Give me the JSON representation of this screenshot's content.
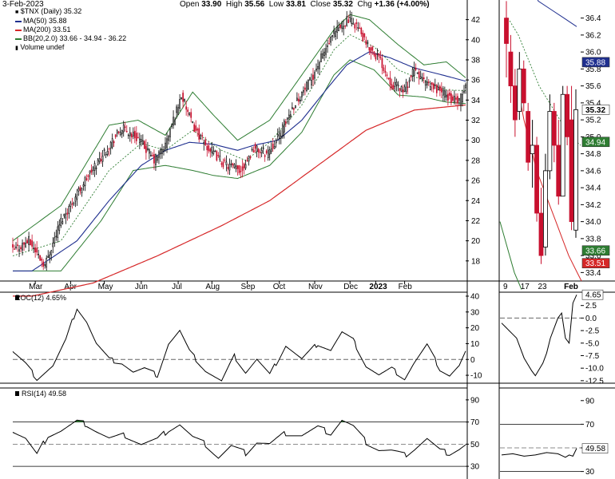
{
  "header": {
    "date": "3-Feb-2023",
    "open_label": "Open",
    "open": "33.90",
    "high_label": "High",
    "high": "35.56",
    "low_label": "Low",
    "low": "33.81",
    "close_label": "Close",
    "close": "35.32",
    "chg_label": "Chg",
    "chg": "+1.36 (+4.00%)"
  },
  "legend": {
    "ticker": "$TNX (Daily) 35.32",
    "ma50": "MA(50) 35.88",
    "ma200": "MA(200) 33.51",
    "bb": "BB(20,2.0) 33.66 - 34.94 - 36.22",
    "volume": "Volume undef"
  },
  "colors": {
    "up": "#000000",
    "down": "#c8102e",
    "ma50": "#1f2f8f",
    "ma200": "#d62728",
    "bb": "#2e7d32",
    "bbmid": "#2e7d32",
    "badge_close": "#ffffff"
  },
  "chart_data": [
    {
      "type": "candlestick",
      "title": "$TNX (Daily)",
      "ylim": [
        16,
        43
      ],
      "y_ticks": [
        "18",
        "20",
        "22",
        "24",
        "26",
        "28",
        "30",
        "32",
        "34",
        "36",
        "38",
        "40",
        "42"
      ],
      "x_ticks": [
        "Mar",
        "Apr",
        "May",
        "Jun",
        "Jul",
        "Aug",
        "Sep",
        "Oct",
        "Nov",
        "Dec",
        "2023",
        "Feb"
      ],
      "close_anchors": [
        [
          0,
          19
        ],
        [
          10,
          20
        ],
        [
          20,
          17.6
        ],
        [
          30,
          22
        ],
        [
          45,
          26
        ],
        [
          60,
          29.5
        ],
        [
          68,
          31.2
        ],
        [
          78,
          30.2
        ],
        [
          88,
          28
        ],
        [
          95,
          29.5
        ],
        [
          105,
          34.5
        ],
        [
          112,
          31.5
        ],
        [
          120,
          29.5
        ],
        [
          132,
          27.6
        ],
        [
          142,
          27
        ],
        [
          150,
          29.2
        ],
        [
          158,
          28.7
        ],
        [
          165,
          30.2
        ],
        [
          175,
          33.5
        ],
        [
          185,
          35.8
        ],
        [
          193,
          38.5
        ],
        [
          200,
          40.5
        ],
        [
          208,
          42
        ],
        [
          214,
          41.5
        ],
        [
          220,
          39.5
        ],
        [
          228,
          38.2
        ],
        [
          236,
          35.6
        ],
        [
          244,
          35
        ],
        [
          250,
          37
        ],
        [
          258,
          35.5
        ],
        [
          266,
          35
        ],
        [
          272,
          34.2
        ],
        [
          278,
          33.8
        ],
        [
          282,
          35.32
        ]
      ],
      "ma50": [
        [
          12,
          17
        ],
        [
          40,
          20
        ],
        [
          60,
          24
        ],
        [
          80,
          27.5
        ],
        [
          95,
          29
        ],
        [
          110,
          29.8
        ],
        [
          125,
          29.6
        ],
        [
          140,
          29
        ],
        [
          150,
          29.5
        ],
        [
          165,
          30
        ],
        [
          180,
          32
        ],
        [
          195,
          35
        ],
        [
          208,
          37.5
        ],
        [
          222,
          38.8
        ],
        [
          235,
          38.2
        ],
        [
          250,
          37.2
        ],
        [
          265,
          36.6
        ],
        [
          282,
          35.88
        ]
      ],
      "ma200": [
        [
          12,
          14.5
        ],
        [
          50,
          15.8
        ],
        [
          90,
          18.5
        ],
        [
          130,
          21.5
        ],
        [
          160,
          24
        ],
        [
          190,
          27.5
        ],
        [
          220,
          31
        ],
        [
          250,
          33
        ],
        [
          282,
          33.51
        ]
      ],
      "bb_mid": [
        [
          0,
          18.5
        ],
        [
          30,
          20
        ],
        [
          60,
          27
        ],
        [
          80,
          29.7
        ],
        [
          95,
          29
        ],
        [
          112,
          31
        ],
        [
          130,
          29
        ],
        [
          145,
          28
        ],
        [
          160,
          29.8
        ],
        [
          180,
          33.5
        ],
        [
          200,
          39
        ],
        [
          210,
          40.5
        ],
        [
          225,
          39.3
        ],
        [
          240,
          37
        ],
        [
          255,
          36
        ],
        [
          270,
          35
        ],
        [
          282,
          34.94
        ]
      ],
      "bb_upper": [
        [
          0,
          20
        ],
        [
          30,
          23.5
        ],
        [
          60,
          31.5
        ],
        [
          78,
          32
        ],
        [
          95,
          30.5
        ],
        [
          112,
          34.8
        ],
        [
          125,
          32.5
        ],
        [
          140,
          30
        ],
        [
          160,
          32
        ],
        [
          180,
          36.5
        ],
        [
          200,
          41
        ],
        [
          210,
          42.5
        ],
        [
          222,
          42
        ],
        [
          240,
          39.5
        ],
        [
          256,
          37.5
        ],
        [
          270,
          37.8
        ],
        [
          282,
          36.22
        ]
      ],
      "bb_lower": [
        [
          0,
          17
        ],
        [
          30,
          17
        ],
        [
          55,
          22
        ],
        [
          75,
          27
        ],
        [
          95,
          27.5
        ],
        [
          112,
          27
        ],
        [
          125,
          26.5
        ],
        [
          140,
          26.2
        ],
        [
          160,
          27.5
        ],
        [
          180,
          30.8
        ],
        [
          200,
          36.5
        ],
        [
          210,
          38
        ],
        [
          225,
          37
        ],
        [
          240,
          34.5
        ],
        [
          256,
          34.3
        ],
        [
          270,
          33.8
        ],
        [
          282,
          33.66
        ]
      ],
      "zoom_ylim": [
        33.3,
        36.5
      ],
      "zoom_y_ticks": [
        "33.4",
        "33.6",
        "33.8",
        "34.0",
        "34.2",
        "34.4",
        "34.6",
        "34.8",
        "35.0",
        "35.2",
        "35.4",
        "35.6",
        "35.8",
        "36.0",
        "36.2",
        "36.4"
      ],
      "zoom_x_ticks": [
        "9",
        "17",
        "23",
        "Feb"
      ],
      "zoom_badges": [
        {
          "label": "35.88",
          "value": 35.88,
          "key": "ma50"
        },
        {
          "label": "35.32",
          "value": 35.32,
          "key": "badge_close"
        },
        {
          "label": "34.94",
          "value": 34.94,
          "key": "bbmid"
        },
        {
          "label": "33.66",
          "value": 33.66,
          "key": "bb"
        },
        {
          "label": "33.51",
          "value": 33.51,
          "key": "ma200"
        }
      ],
      "zoom_candles": [
        {
          "o": 36.4,
          "h": 36.6,
          "l": 35.7,
          "c": 36.1
        },
        {
          "o": 36.0,
          "h": 36.2,
          "l": 35.4,
          "c": 35.6
        },
        {
          "o": 35.6,
          "h": 35.8,
          "l": 35.0,
          "c": 35.2
        },
        {
          "o": 35.3,
          "h": 36.0,
          "l": 35.2,
          "c": 35.8
        },
        {
          "o": 35.8,
          "h": 35.9,
          "l": 35.3,
          "c": 35.4
        },
        {
          "o": 35.3,
          "h": 35.4,
          "l": 34.6,
          "c": 34.7
        },
        {
          "o": 34.8,
          "h": 35.2,
          "l": 34.4,
          "c": 34.9
        },
        {
          "o": 34.9,
          "h": 35.0,
          "l": 34.0,
          "c": 34.1
        },
        {
          "o": 34.1,
          "h": 34.4,
          "l": 33.5,
          "c": 33.6
        },
        {
          "o": 33.7,
          "h": 34.8,
          "l": 33.6,
          "c": 34.6
        },
        {
          "o": 34.6,
          "h": 35.5,
          "l": 34.5,
          "c": 35.3
        },
        {
          "o": 35.3,
          "h": 35.4,
          "l": 34.7,
          "c": 34.9
        },
        {
          "o": 34.9,
          "h": 35.2,
          "l": 34.2,
          "c": 34.3
        },
        {
          "o": 34.3,
          "h": 35.6,
          "l": 34.3,
          "c": 35.5
        },
        {
          "o": 35.5,
          "h": 35.6,
          "l": 34.9,
          "c": 35.0
        },
        {
          "o": 35.2,
          "h": 35.6,
          "l": 33.9,
          "c": 34.0
        },
        {
          "o": 33.9,
          "h": 35.56,
          "l": 33.81,
          "c": 35.32
        }
      ]
    },
    {
      "type": "line",
      "title": "ROC(12) 4.65%",
      "ylim": [
        -15,
        42
      ],
      "y_ticks": [
        "-10",
        "0",
        "10",
        "20",
        "30",
        "40"
      ],
      "ref_line": 0,
      "anchors": [
        [
          0,
          5
        ],
        [
          8,
          -3
        ],
        [
          15,
          -12
        ],
        [
          25,
          -4
        ],
        [
          33,
          12
        ],
        [
          40,
          33
        ],
        [
          46,
          24
        ],
        [
          52,
          10
        ],
        [
          60,
          0
        ],
        [
          68,
          -2
        ],
        [
          75,
          -8
        ],
        [
          82,
          -6
        ],
        [
          90,
          -10
        ],
        [
          97,
          10
        ],
        [
          104,
          18
        ],
        [
          110,
          5
        ],
        [
          120,
          -7
        ],
        [
          130,
          -14
        ],
        [
          138,
          2
        ],
        [
          145,
          -8
        ],
        [
          152,
          0
        ],
        [
          160,
          -10
        ],
        [
          170,
          9
        ],
        [
          180,
          0
        ],
        [
          190,
          10
        ],
        [
          198,
          6
        ],
        [
          205,
          17
        ],
        [
          212,
          12
        ],
        [
          220,
          -4
        ],
        [
          228,
          -10
        ],
        [
          236,
          -6
        ],
        [
          244,
          -12
        ],
        [
          250,
          -2
        ],
        [
          258,
          9
        ],
        [
          266,
          -6
        ],
        [
          272,
          -10
        ],
        [
          278,
          -4
        ],
        [
          282,
          4.65
        ]
      ],
      "zoom_ylim": [
        -13,
        5
      ],
      "zoom_y_ticks": [
        "-12.5",
        "-10.0",
        "-7.5",
        "-5.0",
        "-2.5",
        "0.0",
        "2.5"
      ],
      "zoom_badge": "4.65",
      "zoom_anchors": [
        [
          0,
          -1
        ],
        [
          2,
          -2.5
        ],
        [
          4,
          -4
        ],
        [
          6,
          -8
        ],
        [
          8,
          -10.5
        ],
        [
          9,
          -11.5
        ],
        [
          11,
          -9
        ],
        [
          12,
          -7
        ],
        [
          13,
          -4
        ],
        [
          14,
          -2
        ],
        [
          15,
          0
        ],
        [
          16,
          1
        ],
        [
          17,
          -4
        ],
        [
          18,
          -5
        ],
        [
          19,
          3
        ],
        [
          20,
          4.65
        ]
      ]
    },
    {
      "type": "line",
      "title": "RSI(14) 49.58",
      "ylim": [
        20,
        100
      ],
      "y_ticks": [
        "30",
        "50",
        "70",
        "90"
      ],
      "ref_lines": [
        30,
        50,
        70
      ],
      "anchors": [
        [
          0,
          62
        ],
        [
          8,
          55
        ],
        [
          15,
          40
        ],
        [
          22,
          58
        ],
        [
          30,
          62
        ],
        [
          40,
          70
        ],
        [
          46,
          68
        ],
        [
          52,
          62
        ],
        [
          60,
          55
        ],
        [
          70,
          58
        ],
        [
          80,
          50
        ],
        [
          90,
          54
        ],
        [
          97,
          63
        ],
        [
          104,
          68
        ],
        [
          112,
          56
        ],
        [
          120,
          50
        ],
        [
          128,
          38
        ],
        [
          136,
          48
        ],
        [
          145,
          42
        ],
        [
          152,
          52
        ],
        [
          160,
          50
        ],
        [
          170,
          60
        ],
        [
          180,
          58
        ],
        [
          190,
          65
        ],
        [
          198,
          60
        ],
        [
          205,
          72
        ],
        [
          212,
          66
        ],
        [
          220,
          52
        ],
        [
          228,
          45
        ],
        [
          236,
          44
        ],
        [
          244,
          40
        ],
        [
          250,
          46
        ],
        [
          258,
          55
        ],
        [
          266,
          44
        ],
        [
          272,
          42
        ],
        [
          278,
          46
        ],
        [
          282,
          49.58
        ]
      ],
      "zoom_ylim": [
        25,
        100
      ],
      "zoom_y_ticks": [
        "30",
        "50",
        "70",
        "90"
      ],
      "zoom_badge": "49.58",
      "zoom_anchors": [
        [
          0,
          44
        ],
        [
          3,
          45
        ],
        [
          6,
          43
        ],
        [
          9,
          44
        ],
        [
          12,
          46
        ],
        [
          15,
          45
        ],
        [
          17,
          42
        ],
        [
          18,
          44
        ],
        [
          19,
          43
        ],
        [
          20,
          49.58
        ]
      ]
    }
  ]
}
